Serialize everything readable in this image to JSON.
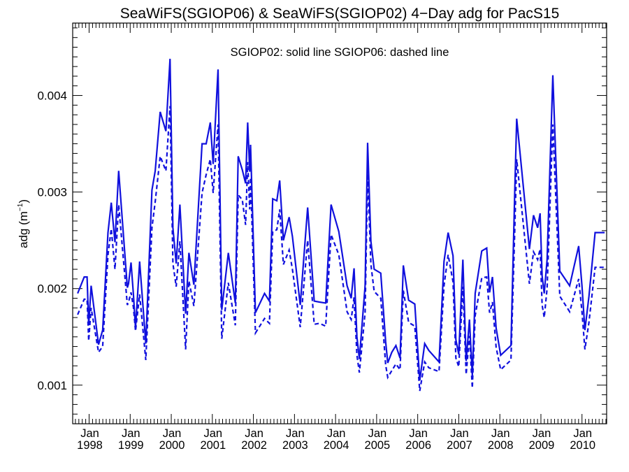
{
  "chart_data": {
    "type": "line",
    "title": "SeaWiFS(SGIOP06) & SeaWiFS(SGIOP02) 4−Day adg for PacS15",
    "annotation": "SGIOP02: solid line   SGIOP06: dashed line",
    "ylabel": "adg (m",
    "ylabel_sup": "−1",
    "ylabel_close": ")",
    "xlim": [
      1997.72,
      2010.55
    ],
    "ylim": [
      0.0006,
      0.00475
    ],
    "yticks": [
      {
        "value": 0.001,
        "label": "0.001"
      },
      {
        "value": 0.002,
        "label": "0.002"
      },
      {
        "value": 0.003,
        "label": "0.003"
      },
      {
        "value": 0.004,
        "label": "0.004"
      }
    ],
    "xticks": [
      {
        "value": 1998,
        "month": "Jan",
        "year": "1998"
      },
      {
        "value": 1999,
        "month": "Jan",
        "year": "1999"
      },
      {
        "value": 2000,
        "month": "Jan",
        "year": "2000"
      },
      {
        "value": 2001,
        "month": "Jan",
        "year": "2001"
      },
      {
        "value": 2002,
        "month": "Jan",
        "year": "2002"
      },
      {
        "value": 2003,
        "month": "Jan",
        "year": "2003"
      },
      {
        "value": 2004,
        "month": "Jan",
        "year": "2004"
      },
      {
        "value": 2005,
        "month": "Jan",
        "year": "2005"
      },
      {
        "value": 2006,
        "month": "Jan",
        "year": "2006"
      },
      {
        "value": 2007,
        "month": "Jan",
        "year": "2007"
      },
      {
        "value": 2008,
        "month": "Jan",
        "year": "2008"
      },
      {
        "value": 2009,
        "month": "Jan",
        "year": "2009"
      },
      {
        "value": 2010,
        "month": "Jan",
        "year": "2010"
      }
    ],
    "grid": false,
    "line_color": "#1010dd",
    "series": [
      {
        "style": "solid",
        "x": [
          1997.72,
          1997.88,
          1997.95,
          1997.99,
          1998.05,
          1998.23,
          1998.33,
          1998.46,
          1998.54,
          1998.63,
          1998.72,
          1998.93,
          1998.96,
          1999.02,
          1999.08,
          1999.13,
          1999.23,
          1999.38,
          1999.53,
          1999.61,
          1999.73,
          1999.87,
          1999.97,
          2000.04,
          2000.12,
          2000.21,
          2000.35,
          2000.43,
          2000.55,
          2000.75,
          2000.85,
          2000.95,
          2001.02,
          2001.14,
          2001.23,
          2001.39,
          2001.56,
          2001.63,
          2001.73,
          2001.81,
          2001.86,
          2001.91,
          2001.93,
          2002.05,
          2002.27,
          2002.39,
          2002.47,
          2002.57,
          2002.64,
          2002.73,
          2002.87,
          2002.95,
          2003.14,
          2003.32,
          2003.48,
          2003.61,
          2003.76,
          2003.89,
          2004.08,
          2004.28,
          2004.38,
          2004.45,
          2004.52,
          2004.58,
          2004.72,
          2004.78,
          2004.86,
          2004.94,
          2005.1,
          2005.22,
          2005.27,
          2005.37,
          2005.47,
          2005.57,
          2005.65,
          2005.78,
          2005.93,
          2006.05,
          2006.17,
          2006.27,
          2006.52,
          2006.64,
          2006.74,
          2006.86,
          2006.93,
          2007.0,
          2007.1,
          2007.18,
          2007.26,
          2007.33,
          2007.4,
          2007.56,
          2007.68,
          2007.75,
          2007.82,
          2007.91,
          2008.02,
          2008.27,
          2008.36,
          2008.41,
          2008.72,
          2008.82,
          2008.92,
          2008.98,
          2009.03,
          2009.08,
          2009.15,
          2009.29,
          2009.46,
          2009.7,
          2009.92,
          2010.0,
          2010.07,
          2010.17,
          2010.32,
          2010.55
        ],
        "y": [
          0.00195,
          0.00212,
          0.00212,
          0.00162,
          0.00203,
          0.00142,
          0.00157,
          0.00258,
          0.00289,
          0.00248,
          0.00322,
          0.00201,
          0.00205,
          0.00227,
          0.00193,
          0.00159,
          0.00228,
          0.00143,
          0.00302,
          0.00322,
          0.00383,
          0.00363,
          0.00438,
          0.00263,
          0.00226,
          0.00287,
          0.00174,
          0.00237,
          0.00204,
          0.0035,
          0.0035,
          0.00372,
          0.00329,
          0.00427,
          0.00178,
          0.00237,
          0.00185,
          0.00337,
          0.00323,
          0.00309,
          0.00372,
          0.00321,
          0.00349,
          0.00175,
          0.00195,
          0.00187,
          0.00293,
          0.00291,
          0.00312,
          0.0025,
          0.00274,
          0.00254,
          0.00183,
          0.00284,
          0.00187,
          0.00186,
          0.00185,
          0.00287,
          0.00259,
          0.00203,
          0.0019,
          0.00221,
          0.0015,
          0.00127,
          0.00203,
          0.00351,
          0.00249,
          0.0022,
          0.00216,
          0.00145,
          0.00123,
          0.00134,
          0.00141,
          0.00128,
          0.00224,
          0.00188,
          0.00184,
          0.00105,
          0.00143,
          0.00136,
          0.00124,
          0.00228,
          0.00258,
          0.00234,
          0.00147,
          0.00132,
          0.0023,
          0.00125,
          0.00168,
          0.0011,
          0.00195,
          0.00239,
          0.00242,
          0.00196,
          0.00212,
          0.00159,
          0.00131,
          0.00141,
          0.00297,
          0.00376,
          0.00241,
          0.00276,
          0.00263,
          0.00278,
          0.00213,
          0.00195,
          0.0023,
          0.00421,
          0.00218,
          0.00203,
          0.00244,
          0.00203,
          0.00157,
          0.00192,
          0.00258,
          0.00258
        ]
      },
      {
        "style": "dashed",
        "x": [
          1997.72,
          1997.88,
          1997.95,
          1997.99,
          1998.05,
          1998.23,
          1998.33,
          1998.46,
          1998.54,
          1998.63,
          1998.72,
          1998.93,
          1998.96,
          1999.02,
          1999.08,
          1999.13,
          1999.23,
          1999.38,
          1999.53,
          1999.61,
          1999.73,
          1999.87,
          1999.97,
          2000.04,
          2000.12,
          2000.21,
          2000.35,
          2000.43,
          2000.55,
          2000.75,
          2000.85,
          2000.95,
          2001.02,
          2001.14,
          2001.23,
          2001.39,
          2001.56,
          2001.63,
          2001.73,
          2001.81,
          2001.86,
          2001.91,
          2001.93,
          2002.05,
          2002.27,
          2002.39,
          2002.47,
          2002.57,
          2002.64,
          2002.73,
          2002.87,
          2002.95,
          2003.14,
          2003.32,
          2003.48,
          2003.61,
          2003.76,
          2003.89,
          2004.08,
          2004.28,
          2004.38,
          2004.45,
          2004.52,
          2004.58,
          2004.72,
          2004.78,
          2004.86,
          2004.94,
          2005.1,
          2005.22,
          2005.27,
          2005.37,
          2005.47,
          2005.57,
          2005.65,
          2005.78,
          2005.93,
          2006.05,
          2006.17,
          2006.27,
          2006.52,
          2006.64,
          2006.74,
          2006.86,
          2006.93,
          2007.0,
          2007.1,
          2007.18,
          2007.26,
          2007.33,
          2007.4,
          2007.56,
          2007.68,
          2007.75,
          2007.82,
          2007.91,
          2008.02,
          2008.27,
          2008.36,
          2008.41,
          2008.72,
          2008.82,
          2008.92,
          2008.98,
          2009.03,
          2009.08,
          2009.15,
          2009.29,
          2009.46,
          2009.7,
          2009.92,
          2010.0,
          2010.07,
          2010.17,
          2010.32,
          2010.55
        ],
        "y": [
          0.00173,
          0.00189,
          0.00189,
          0.00146,
          0.0018,
          0.00134,
          0.0014,
          0.00235,
          0.00262,
          0.0022,
          0.00287,
          0.00183,
          0.00186,
          0.00196,
          0.0018,
          0.00156,
          0.00194,
          0.00126,
          0.00263,
          0.0029,
          0.00337,
          0.00322,
          0.00389,
          0.00226,
          0.00202,
          0.00249,
          0.00137,
          0.00208,
          0.00182,
          0.00299,
          0.00318,
          0.00334,
          0.00299,
          0.0037,
          0.00148,
          0.00206,
          0.00162,
          0.00297,
          0.00292,
          0.00266,
          0.00331,
          0.00282,
          0.00315,
          0.00154,
          0.00169,
          0.00164,
          0.00259,
          0.00261,
          0.00282,
          0.00225,
          0.0024,
          0.0022,
          0.0016,
          0.0025,
          0.00163,
          0.00164,
          0.00161,
          0.00256,
          0.00235,
          0.00176,
          0.00168,
          0.00191,
          0.00131,
          0.00113,
          0.00175,
          0.00319,
          0.00225,
          0.00197,
          0.0019,
          0.00121,
          0.00108,
          0.00115,
          0.00122,
          0.00116,
          0.00198,
          0.00165,
          0.00161,
          0.00094,
          0.00124,
          0.00118,
          0.00114,
          0.00203,
          0.00235,
          0.00207,
          0.00128,
          0.00119,
          0.00202,
          0.00111,
          0.00151,
          0.00097,
          0.00172,
          0.00211,
          0.00212,
          0.00175,
          0.00186,
          0.00139,
          0.00116,
          0.00126,
          0.00257,
          0.00334,
          0.00205,
          0.00238,
          0.0023,
          0.00241,
          0.00183,
          0.0017,
          0.002,
          0.0037,
          0.00192,
          0.00176,
          0.0021,
          0.00176,
          0.00137,
          0.00165,
          0.00222,
          0.00222
        ]
      }
    ]
  }
}
